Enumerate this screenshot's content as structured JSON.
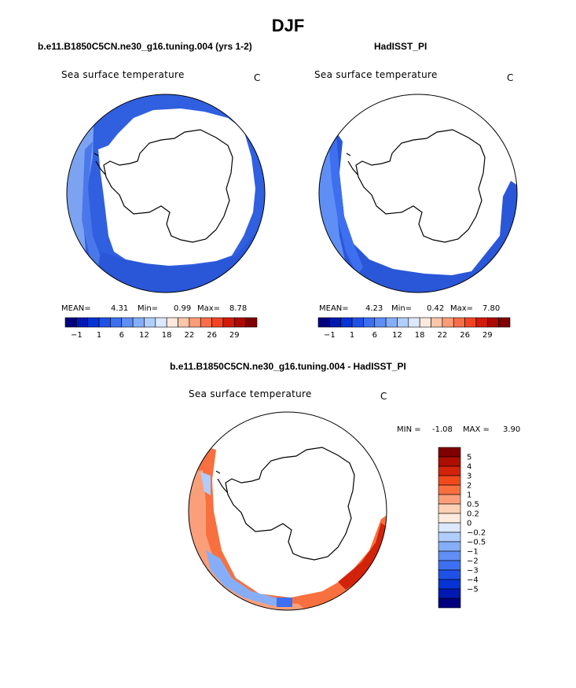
{
  "page_title": "DJF",
  "panels": [
    {
      "title": "b.e11.B1850C5CN.ne30_g16.tuning.004 (yrs 1-2)",
      "variable": "Sea surface temperature",
      "units": "C",
      "stats": {
        "mean_label": "MEAN=",
        "mean": "4.31",
        "min_label": "Min=",
        "min": "0.99",
        "max_label": "Max=",
        "max": "8.78"
      }
    },
    {
      "title": "HadISST_PI",
      "variable": "Sea surface temperature",
      "units": "C",
      "stats": {
        "mean_label": "MEAN=",
        "mean": "4.23",
        "min_label": "Min=",
        "min": "0.42",
        "max_label": "Max=",
        "max": "7.80"
      }
    },
    {
      "title": "b.e11.B1850C5CN.ne30_g16.tuning.004 - HadISST_PI",
      "variable": "Sea surface temperature",
      "units": "C",
      "stats": {
        "min_label": "MIN =",
        "min": "-1.08",
        "max_label": "MAX =",
        "max": "3.90"
      }
    }
  ],
  "colorbar_abs": {
    "colors": [
      "#00007f",
      "#0019b2",
      "#0533d4",
      "#1f51e6",
      "#3d6ff0",
      "#5f8ef5",
      "#86aef8",
      "#b0cdfb",
      "#dbe8fd",
      "#fde9dc",
      "#fcc7a9",
      "#fb9c76",
      "#f86e48",
      "#f24425",
      "#d21b0b",
      "#ac0a02",
      "#7f0000"
    ],
    "tick_labels": [
      "−1",
      "1",
      "6",
      "12",
      "18",
      "22",
      "26",
      "29"
    ]
  },
  "colorbar_diff": {
    "colors": [
      "#00007f",
      "#0019b2",
      "#0533d4",
      "#1f51e6",
      "#3d6ff0",
      "#5f8ef5",
      "#86aef8",
      "#b0cdfb",
      "#dbe8fd",
      "#fdecdd",
      "#fcd0b4",
      "#fb9f7b",
      "#f8703f",
      "#f04a1c",
      "#d2230a",
      "#ac0f02",
      "#7f0000"
    ],
    "tick_labels": [
      "5",
      "4",
      "3",
      "2",
      "1",
      "0.5",
      "0.2",
      "0",
      "−0.2",
      "−0.5",
      "−1",
      "−2",
      "−3",
      "−4",
      "−5"
    ]
  },
  "chart_data": [
    {
      "type": "heatmap",
      "title": "b.e11.B1850C5CN.ne30_g16.tuning.004 (yrs 1-2)",
      "variable": "Sea surface temperature",
      "units": "C",
      "projection": "south polar stereographic",
      "mean": 4.31,
      "min": 0.99,
      "max": 8.78,
      "colorbar_ticks": [
        -1,
        1,
        6,
        12,
        18,
        22,
        26,
        29
      ]
    },
    {
      "type": "heatmap",
      "title": "HadISST_PI",
      "variable": "Sea surface temperature",
      "units": "C",
      "projection": "south polar stereographic",
      "mean": 4.23,
      "min": 0.42,
      "max": 7.8,
      "colorbar_ticks": [
        -1,
        1,
        6,
        12,
        18,
        22,
        26,
        29
      ]
    },
    {
      "type": "heatmap",
      "title": "b.e11.B1850C5CN.ne30_g16.tuning.004 - HadISST_PI",
      "variable": "Sea surface temperature",
      "units": "C",
      "projection": "south polar stereographic",
      "min": -1.08,
      "max": 3.9,
      "colorbar_ticks": [
        5,
        4,
        3,
        2,
        1,
        0.5,
        0.2,
        0,
        -0.2,
        -0.5,
        -1,
        -2,
        -3,
        -4,
        -5
      ]
    }
  ]
}
